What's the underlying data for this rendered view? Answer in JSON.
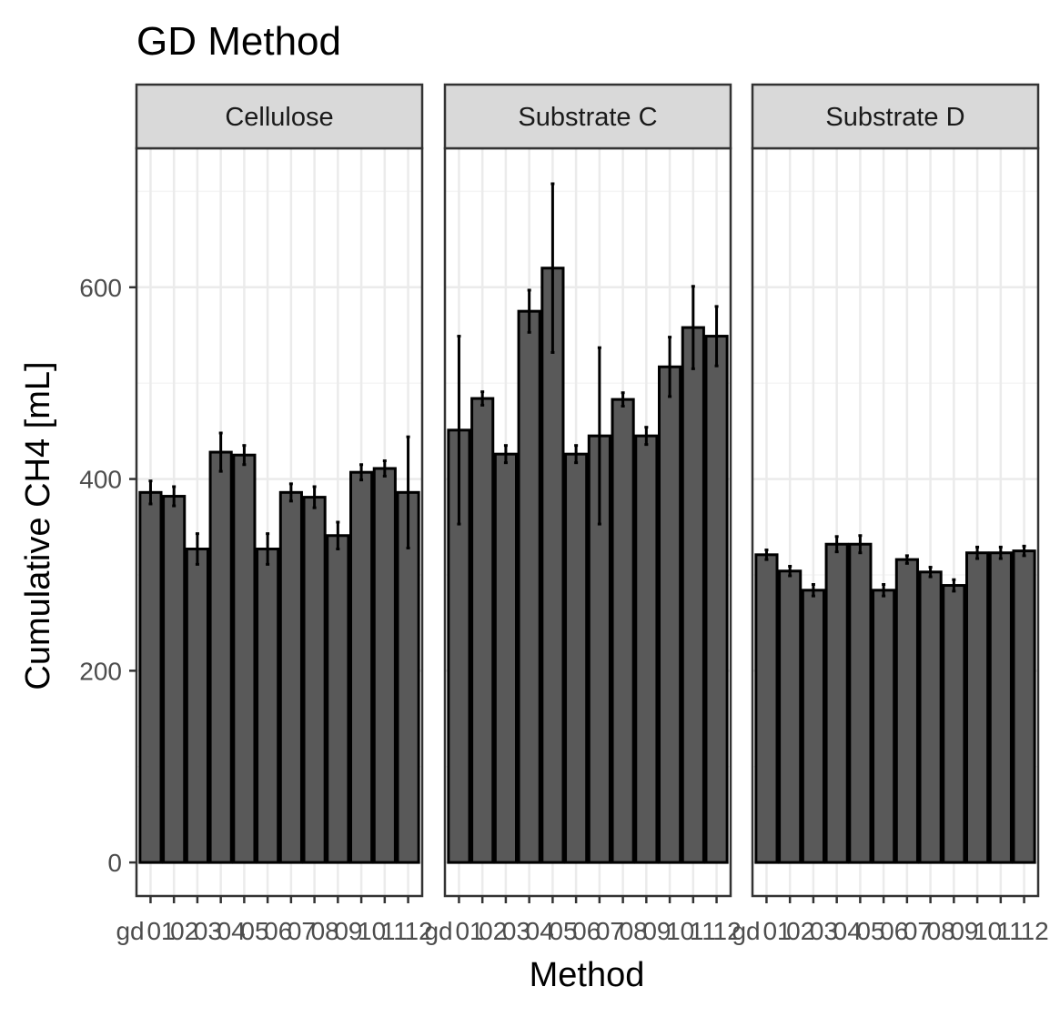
{
  "chart_data": {
    "type": "bar",
    "title": "GD Method",
    "xlabel": "Method",
    "ylabel": "Cumulative CH4 [mL]",
    "y_ticks": [
      0,
      200,
      400,
      600
    ],
    "ylim": [
      -35,
      745
    ],
    "grid": true,
    "x_tick_label_text": "gd|gd|gd02|gd03|gd04|gd05|gd06|gd07|gd08|gd09|gd10|gd11|gd12",
    "x_tick_label_segments": [
      "gd",
      "01",
      "02",
      "03",
      "04",
      "05",
      "06",
      "07",
      "08",
      "09",
      "10",
      "11",
      "12"
    ],
    "categories": [
      "gd01",
      "gd02",
      "gd03",
      "gd04",
      "gd05",
      "gd06",
      "gd07",
      "gd08",
      "gd09",
      "gd10",
      "gd11",
      "gd12"
    ],
    "panels": [
      {
        "name": "Cellulose",
        "values": [
          386,
          382,
          327,
          428,
          425,
          327,
          386,
          381,
          341,
          407,
          411,
          386
        ],
        "error": [
          12,
          10,
          16,
          20,
          10,
          16,
          9,
          11,
          14,
          8,
          8,
          58
        ]
      },
      {
        "name": "Substrate C",
        "values": [
          451,
          484,
          426,
          575,
          620,
          426,
          445,
          483,
          445,
          517,
          558,
          549
        ],
        "error": [
          98,
          7,
          9,
          22,
          88,
          9,
          92,
          7,
          9,
          31,
          43,
          31
        ]
      },
      {
        "name": "Substrate D",
        "values": [
          321,
          304,
          284,
          332,
          332,
          284,
          316,
          303,
          289,
          323,
          323,
          325
        ],
        "error": [
          5,
          5,
          6,
          8,
          9,
          6,
          4,
          5,
          6,
          6,
          6,
          5
        ]
      }
    ],
    "colors": {
      "bar_fill": "#595959",
      "bar_stroke": "#000000",
      "grid_major": "#ebebeb",
      "grid_minor": "#f5f5f5",
      "strip_fill": "#d9d9d9",
      "panel_border": "#333333"
    }
  }
}
